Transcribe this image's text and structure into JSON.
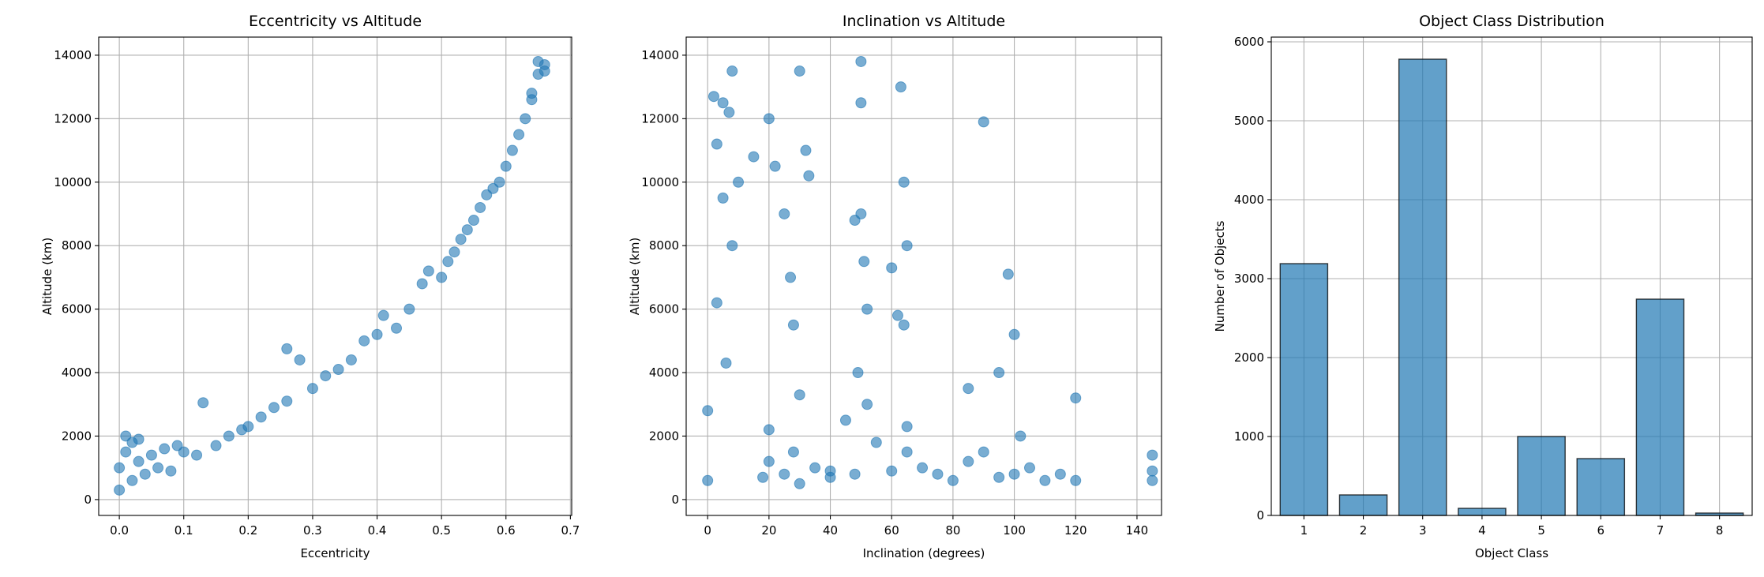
{
  "chart_data": [
    {
      "type": "scatter",
      "title": "Eccentricity vs Altitude",
      "x_label": "Eccentricity",
      "y_label": "Altitude (km)",
      "color": "#1f77b4",
      "grid": true,
      "x": [
        0,
        0.01,
        0.02,
        0.03,
        0.05,
        0.07,
        0.09,
        0.1,
        0.12,
        0.13,
        0.15,
        0.17,
        0.19,
        0.2,
        0.22,
        0.24,
        0.26,
        0.26,
        0.28,
        0.3,
        0.32,
        0.34,
        0.36,
        0.38,
        0.4,
        0.41,
        0.43,
        0.45,
        0.47,
        0.48,
        0.5,
        0.51,
        0.52,
        0.53,
        0.54,
        0.55,
        0.56,
        0.57,
        0.58,
        0.59,
        0.6,
        0.61,
        0.62,
        0.63,
        0.64,
        0.65,
        0.66,
        0.0,
        0.02,
        0.04,
        0.06,
        0.08,
        0.01,
        0.03,
        0.65,
        0.66,
        0.64
      ],
      "values": [
        1000,
        1500,
        1800,
        1200,
        1400,
        1600,
        1700,
        1500,
        1400,
        3050,
        1700,
        2000,
        2200,
        2300,
        2600,
        2900,
        3100,
        4750,
        4400,
        3500,
        3900,
        4100,
        4400,
        5000,
        5200,
        5800,
        5400,
        6000,
        6800,
        7200,
        7000,
        7500,
        7800,
        8200,
        8500,
        8800,
        9200,
        9600,
        9800,
        10000,
        10500,
        11000,
        11500,
        12000,
        12800,
        13400,
        13700,
        300,
        600,
        800,
        1000,
        900,
        2000,
        1900,
        13800,
        13500,
        12600
      ],
      "xlim": [
        -0.032,
        0.702
      ],
      "xticks": [
        {
          "value": 0,
          "label": "0.0"
        },
        0.1,
        0.2,
        0.3,
        0.4,
        0.5,
        0.6,
        0.7
      ],
      "ylim": [
        -500,
        14570
      ],
      "yticks": [
        0,
        2000,
        4000,
        6000,
        8000,
        10000,
        12000,
        14000
      ]
    },
    {
      "type": "scatter",
      "title": "Inclination vs Altitude",
      "x_label": "Inclination (degrees)",
      "y_label": "Altitude (km)",
      "color": "#1f77b4",
      "grid": true,
      "x": [
        0,
        2,
        3,
        5,
        7,
        8,
        10,
        0,
        3,
        6,
        8,
        20,
        22,
        25,
        27,
        28,
        30,
        32,
        18,
        20,
        25,
        28,
        30,
        35,
        40,
        45,
        48,
        50,
        50,
        50,
        51,
        52,
        49,
        52,
        60,
        63,
        64,
        65,
        62,
        65,
        70,
        75,
        80,
        85,
        90,
        90,
        95,
        98,
        100,
        100,
        102,
        105,
        110,
        115,
        120,
        120,
        145,
        145,
        145,
        20,
        30,
        40,
        55,
        65,
        85,
        95,
        5,
        15,
        33,
        48,
        60,
        64
      ],
      "values": [
        600,
        12700,
        11200,
        9500,
        12200,
        13500,
        10000,
        2800,
        6200,
        4300,
        8000,
        12000,
        10500,
        9000,
        7000,
        5500,
        13500,
        11000,
        700,
        1200,
        800,
        1500,
        500,
        1000,
        700,
        2500,
        800,
        13800,
        12500,
        9000,
        7500,
        6000,
        4000,
        3000,
        900,
        13000,
        10000,
        8000,
        5800,
        1500,
        1000,
        800,
        600,
        1200,
        11900,
        1500,
        700,
        7100,
        5200,
        800,
        2000,
        1000,
        600,
        800,
        3200,
        600,
        1400,
        900,
        600,
        2200,
        3300,
        900,
        1800,
        2300,
        3500,
        4000,
        12500,
        10800,
        10200,
        8800,
        7300,
        5500
      ],
      "xlim": [
        -7,
        148
      ],
      "xticks": [
        0,
        20,
        40,
        60,
        80,
        100,
        120,
        140
      ],
      "ylim": [
        -500,
        14570
      ],
      "yticks": [
        0,
        2000,
        4000,
        6000,
        8000,
        10000,
        12000,
        14000
      ]
    },
    {
      "type": "bar",
      "title": "Object Class Distribution",
      "x_label": "Object Class",
      "y_label": "Number of Objects",
      "color": "#1f77b4",
      "grid": true,
      "categories": [
        "1",
        "2",
        "3",
        "4",
        "5",
        "6",
        "7",
        "8"
      ],
      "values": [
        3190,
        260,
        5780,
        90,
        1000,
        720,
        2740,
        30
      ],
      "ylim": [
        0,
        6060
      ],
      "yticks": [
        0,
        1000,
        2000,
        3000,
        4000,
        5000,
        6000
      ]
    }
  ]
}
